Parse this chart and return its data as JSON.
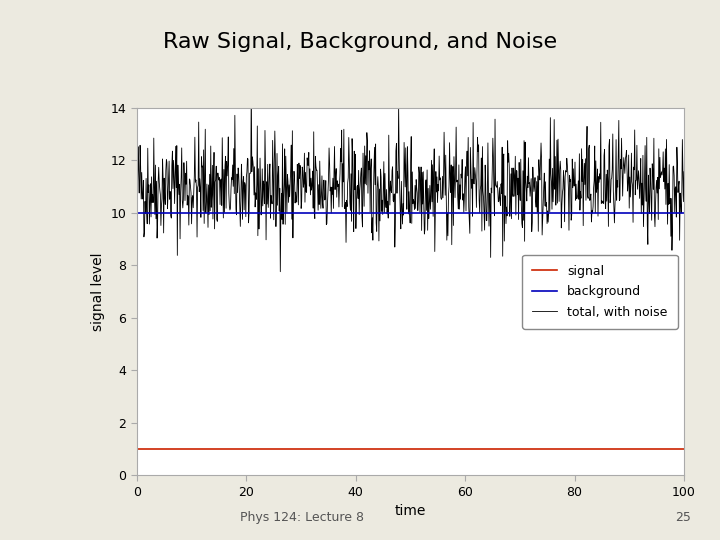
{
  "title": "Raw Signal, Background, and Noise",
  "xlabel": "time",
  "ylabel": "signal level",
  "xlim": [
    0,
    100
  ],
  "ylim": [
    0,
    14
  ],
  "signal_level": 1,
  "background_level": 10,
  "noise_std": 1.0,
  "signal_color": "#cc2200",
  "background_color": "#0000bb",
  "noise_color": "#000000",
  "legend_labels": [
    "signal",
    "background",
    "total, with noise"
  ],
  "seed": 42,
  "n_points": 1000,
  "background_color_fig": "#eceae0",
  "title_fontsize": 16,
  "axis_label_fontsize": 10,
  "tick_fontsize": 9,
  "footer_text": "Phys 124: Lecture 8",
  "footer_number": "25",
  "footer_fontsize": 9
}
